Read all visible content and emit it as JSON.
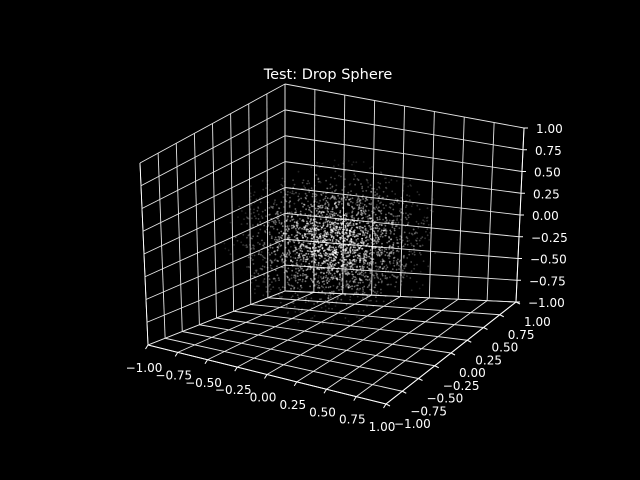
{
  "chart_data": {
    "type": "scatter",
    "projection": "3d",
    "title": "Test: Drop Sphere",
    "xlabel": "",
    "ylabel": "",
    "zlabel": "",
    "xlim": [
      -1.0,
      1.0
    ],
    "ylim": [
      -1.0,
      1.0
    ],
    "zlim": [
      -1.0,
      1.0
    ],
    "x_ticks": [
      "−1.00",
      "−0.75",
      "−0.50",
      "−0.25",
      "0.00",
      "0.25",
      "0.50",
      "0.75",
      "1.00"
    ],
    "y_ticks": [
      "−1.00",
      "−0.75",
      "−0.50",
      "−0.25",
      "0.00",
      "0.25",
      "0.50",
      "0.75",
      "1.00"
    ],
    "z_ticks": [
      "−1.00",
      "−0.75",
      "−0.50",
      "−0.25",
      "0.00",
      "0.25",
      "0.50",
      "0.75",
      "1.00"
    ],
    "grid": true,
    "legend": "none",
    "series": [
      {
        "distribution": "sphere of points, densest at center (0,0,0), fading toward radius ~0.8",
        "color": "#ffffff"
      }
    ]
  },
  "colors": {
    "background": "#000000",
    "foreground": "#ffffff",
    "points": "#ffffff"
  }
}
